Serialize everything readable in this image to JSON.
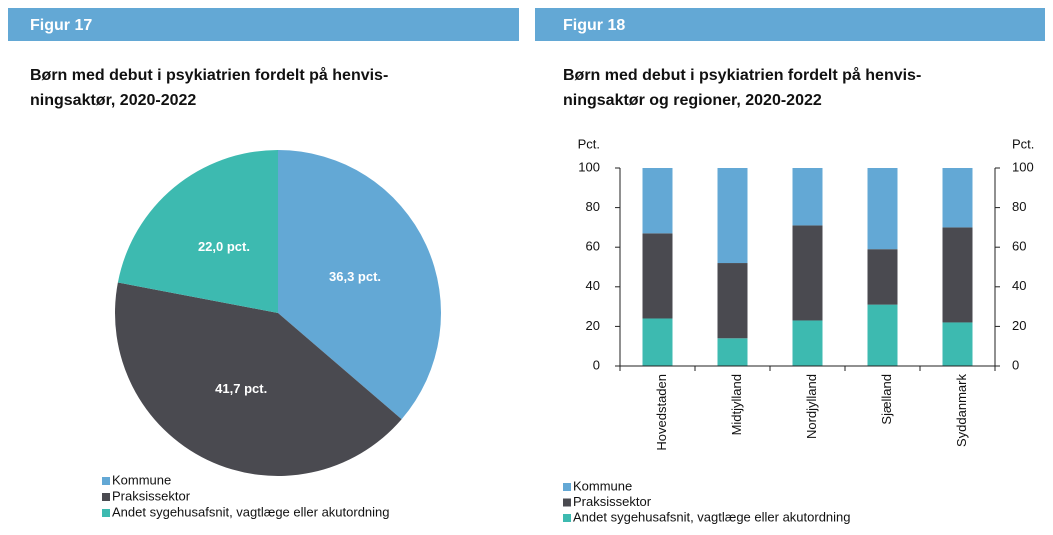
{
  "chart_data": [
    {
      "type": "pie",
      "figure_label": "Figur 17",
      "title": "Børn med debut i psykiatrien fordelt på henvis-ningsaktør, 2020-2022",
      "title_lines": [
        "Børn med debut i psykiatrien fordelt på henvis-",
        "ningsaktør, 2020-2022"
      ],
      "categories": [
        "Kommune",
        "Praksissektor",
        "Andet sygehusafsnit, vagtlæge eller akutordning"
      ],
      "values": [
        36.3,
        41.7,
        22.0
      ],
      "value_labels": [
        "36,3 pct.",
        "41,7 pct.",
        "22,0 pct."
      ],
      "colors": [
        "#63a8d5",
        "#4a4a50",
        "#3dbab0"
      ]
    },
    {
      "type": "stacked_bar",
      "figure_label": "Figur 18",
      "title_lines": [
        "Børn med debut i psykiatrien fordelt på henvis-",
        "ningsaktør og regioner, 2020-2022"
      ],
      "ylabel": "Pct.",
      "y2label": "Pct.",
      "categories": [
        "Hovedstaden",
        "Midtjylland",
        "Nordjylland",
        "Sjælland",
        "Syddanmark"
      ],
      "series": [
        {
          "name": "Andet sygehusafsnit, vagtlæge eller akutordning",
          "color": "#3dbab0",
          "values": [
            24,
            14,
            23,
            31,
            22
          ]
        },
        {
          "name": "Praksissektor",
          "color": "#4a4a50",
          "values": [
            43,
            38,
            48,
            28,
            48
          ]
        },
        {
          "name": "Kommune",
          "color": "#63a8d5",
          "values": [
            33,
            48,
            29,
            41,
            30
          ]
        }
      ],
      "legend_order": [
        2,
        1,
        0
      ],
      "ylim": [
        0,
        100
      ],
      "yticks": [
        0,
        20,
        40,
        60,
        80,
        100
      ],
      "y2lim": [
        0,
        100
      ],
      "y2ticks": [
        0,
        20,
        40,
        60,
        80,
        100
      ]
    }
  ]
}
